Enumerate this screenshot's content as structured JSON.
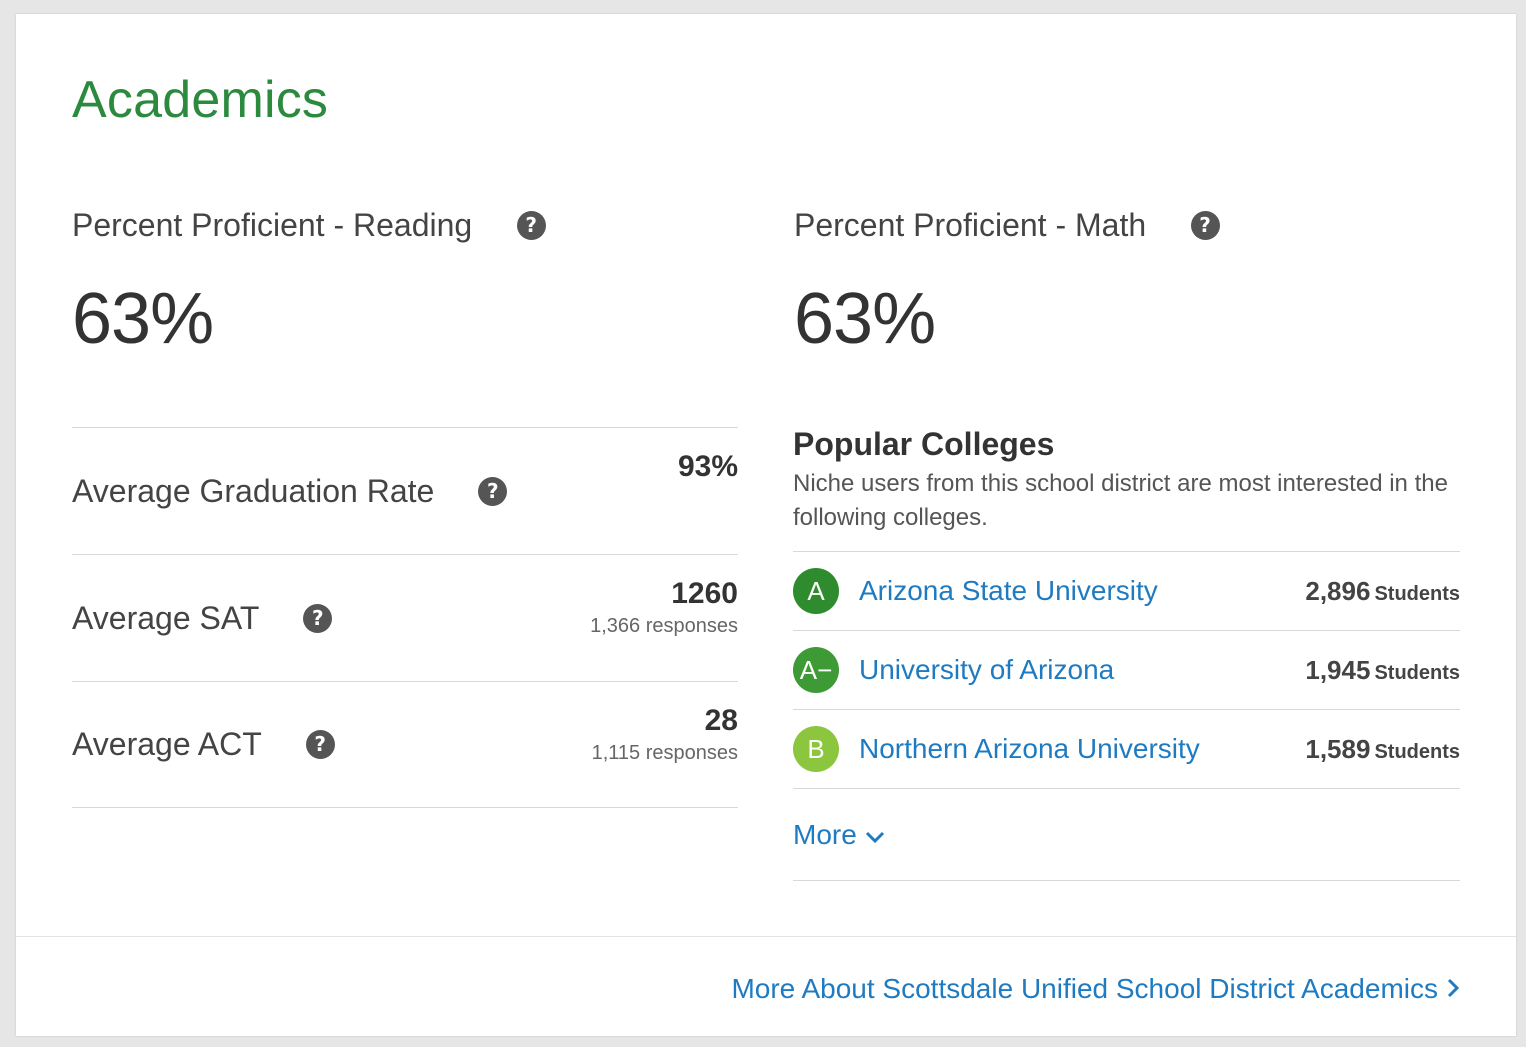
{
  "section": {
    "title": "Academics"
  },
  "reading": {
    "label": "Percent Proficient - Reading",
    "value": "63%"
  },
  "math": {
    "label": "Percent Proficient - Math",
    "value": "63%"
  },
  "stats": [
    {
      "label": "Average Graduation Rate",
      "value": "93%",
      "sub": ""
    },
    {
      "label": "Average SAT",
      "value": "1260",
      "sub": "1,366 responses"
    },
    {
      "label": "Average ACT",
      "value": "28",
      "sub": "1,115 responses"
    }
  ],
  "colleges": {
    "title": "Popular Colleges",
    "subtitle": "Niche users from this school district are most interested in the following colleges.",
    "items": [
      {
        "grade": "A",
        "color": "#2e8b2e",
        "name": "Arizona State University",
        "count": "2,896",
        "unit": "Students"
      },
      {
        "grade": "A−",
        "color": "#3d9a35",
        "name": "University of Arizona",
        "count": "1,945",
        "unit": "Students"
      },
      {
        "grade": "B",
        "color": "#8cc63f",
        "name": "Northern Arizona University",
        "count": "1,589",
        "unit": "Students"
      }
    ],
    "more_label": "More"
  },
  "footer": {
    "link_label": "More About Scottsdale Unified School District Academics"
  },
  "icons": {
    "help": "question-circle-icon",
    "more": "chevron-down-icon",
    "footer": "chevron-right-icon"
  }
}
